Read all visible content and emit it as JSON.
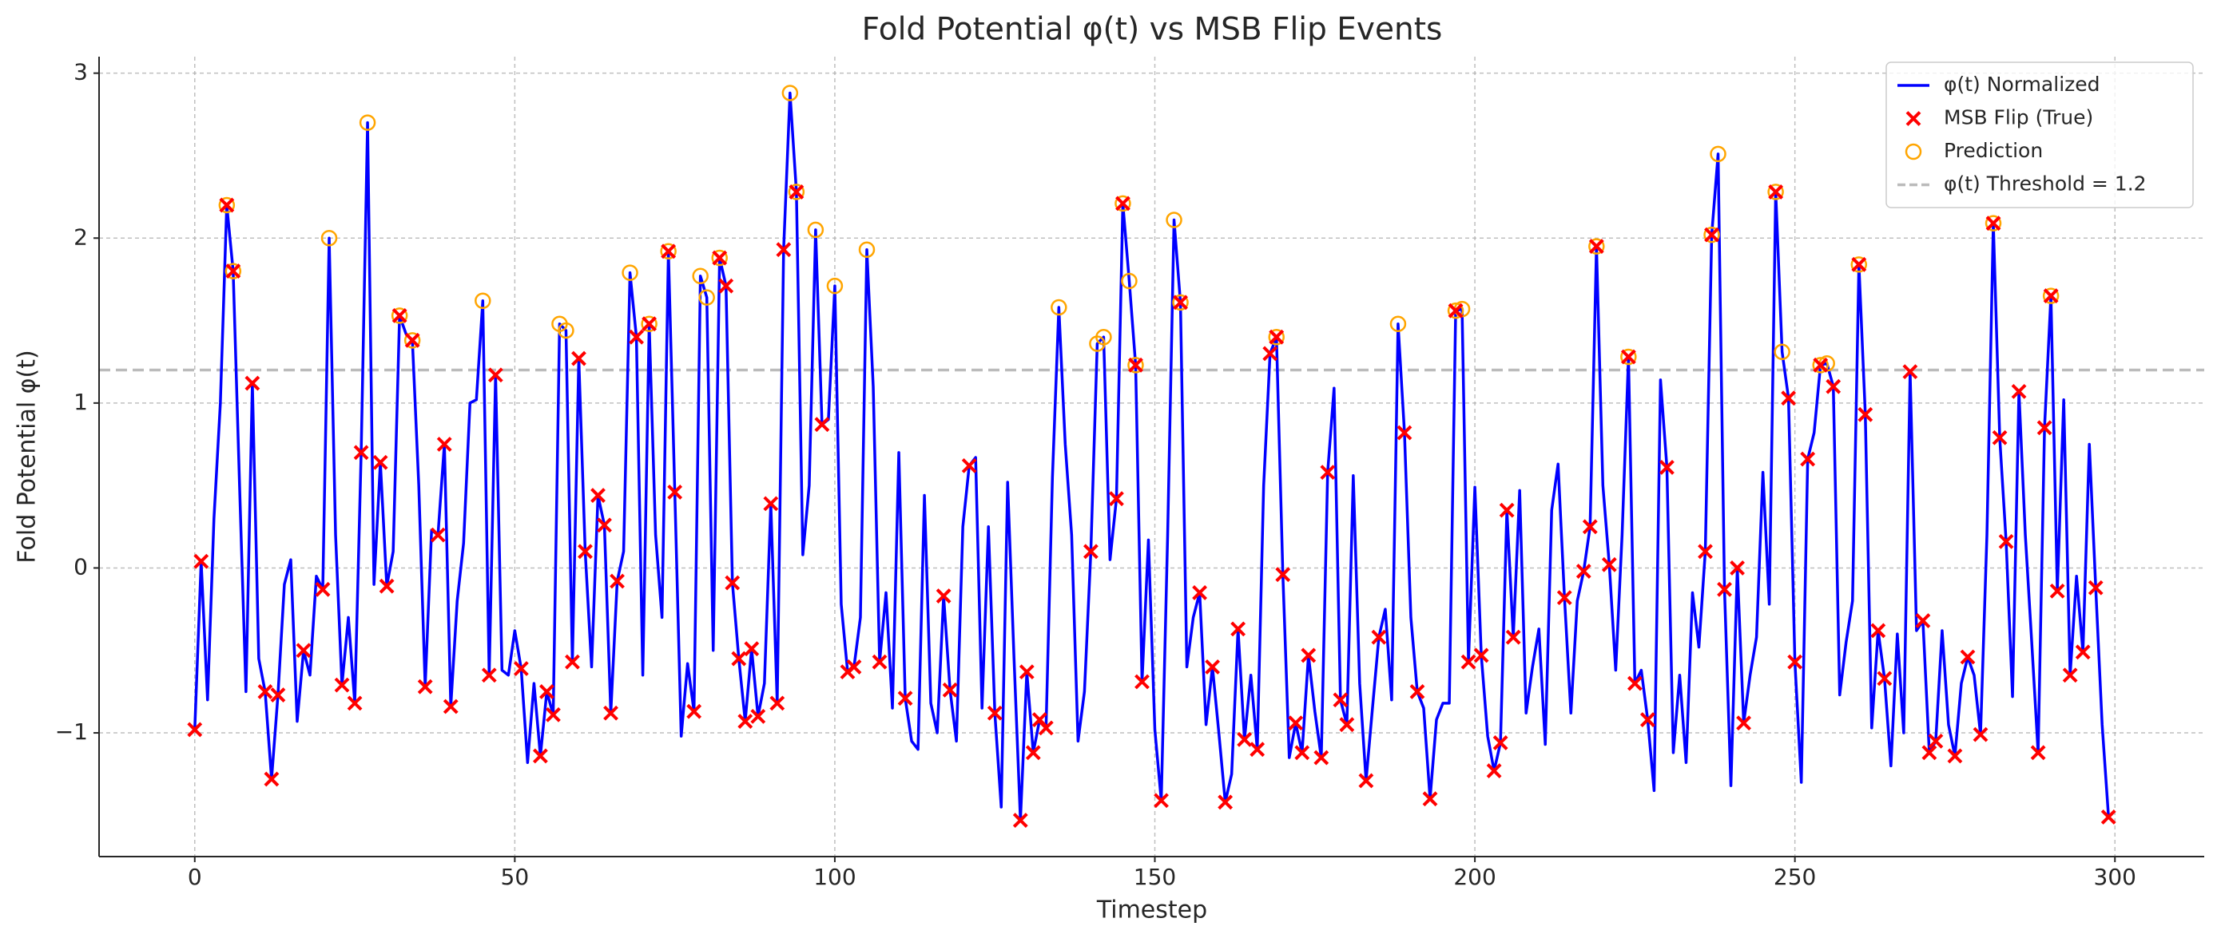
{
  "chart_data": {
    "type": "line",
    "title": "Fold Potential φ(t) vs MSB Flip Events",
    "xlabel": "Timestep",
    "ylabel": "Fold Potential φ(t)",
    "x": [
      0,
      1,
      2,
      3,
      4,
      5,
      6,
      7,
      8,
      9,
      10,
      11,
      12,
      13,
      14,
      15,
      16,
      17,
      18,
      19,
      20,
      21,
      22,
      23,
      24,
      25,
      26,
      27,
      28,
      29,
      30,
      31,
      32,
      33,
      34,
      35,
      36,
      37,
      38,
      39,
      40,
      41,
      42,
      43,
      44,
      45,
      46,
      47,
      48,
      49,
      50,
      51,
      52,
      53,
      54,
      55,
      56,
      57,
      58,
      59,
      60,
      61,
      62,
      63,
      64,
      65,
      66,
      67,
      68,
      69,
      70,
      71,
      72,
      73,
      74,
      75,
      76,
      77,
      78,
      79,
      80,
      81,
      82,
      83,
      84,
      85,
      86,
      87,
      88,
      89,
      90,
      91,
      92,
      93,
      94,
      95,
      96,
      97,
      98,
      99,
      100,
      101,
      102,
      103,
      104,
      105,
      106,
      107,
      108,
      109,
      110,
      111,
      112,
      113,
      114,
      115,
      116,
      117,
      118,
      119,
      120,
      121,
      122,
      123,
      124,
      125,
      126,
      127,
      128,
      129,
      130,
      131,
      132,
      133,
      134,
      135,
      136,
      137,
      138,
      139,
      140,
      141,
      142,
      143,
      144,
      145,
      146,
      147,
      148,
      149,
      150,
      151,
      152,
      153,
      154,
      155,
      156,
      157,
      158,
      159,
      160,
      161,
      162,
      163,
      164,
      165,
      166,
      167,
      168,
      169,
      170,
      171,
      172,
      173,
      174,
      175,
      176,
      177,
      178,
      179,
      180,
      181,
      182,
      183,
      184,
      185,
      186,
      187,
      188,
      189,
      190,
      191,
      192,
      193,
      194,
      195,
      196,
      197,
      198,
      199,
      200,
      201,
      202,
      203,
      204,
      205,
      206,
      207,
      208,
      209,
      210,
      211,
      212,
      213,
      214,
      215,
      216,
      217,
      218,
      219,
      220,
      221,
      222,
      223,
      224,
      225,
      226,
      227,
      228,
      229,
      230,
      231,
      232,
      233,
      234,
      235,
      236,
      237,
      238,
      239,
      240,
      241,
      242,
      243,
      244,
      245,
      246,
      247,
      248,
      249,
      250,
      251,
      252,
      253,
      254,
      255,
      256,
      257,
      258,
      259,
      260,
      261,
      262,
      263,
      264,
      265,
      266,
      267,
      268,
      269,
      270,
      271,
      272,
      273,
      274,
      275,
      276,
      277,
      278,
      279,
      280,
      281,
      282,
      283,
      284,
      285,
      286,
      287,
      288,
      289,
      290,
      291,
      292,
      293,
      294,
      295,
      296,
      297,
      298,
      299
    ],
    "series": [
      {
        "name": "φ(t) Normalized",
        "type": "line",
        "color": "#0000ff",
        "values": [
          -0.98,
          0.04,
          -0.8,
          0.3,
          1.0,
          2.2,
          1.8,
          0.5,
          -0.75,
          1.12,
          -0.55,
          -0.75,
          -1.28,
          -0.77,
          -0.1,
          0.05,
          -0.93,
          -0.5,
          -0.65,
          -0.05,
          -0.13,
          2.0,
          0.2,
          -0.71,
          -0.3,
          -0.82,
          0.7,
          2.7,
          -0.1,
          0.64,
          -0.11,
          0.1,
          1.53,
          1.42,
          1.38,
          0.5,
          -0.72,
          0.23,
          0.2,
          0.75,
          -0.84,
          -0.2,
          0.15,
          1.0,
          1.02,
          1.62,
          -0.65,
          1.17,
          -0.62,
          -0.65,
          -0.38,
          -0.61,
          -1.18,
          -0.7,
          -1.14,
          -0.75,
          -0.89,
          1.48,
          1.44,
          -0.57,
          1.27,
          0.1,
          -0.6,
          0.44,
          0.26,
          -0.88,
          -0.08,
          0.1,
          1.79,
          1.4,
          -0.65,
          1.48,
          0.2,
          -0.3,
          1.92,
          0.46,
          -1.02,
          -0.58,
          -0.87,
          1.77,
          1.64,
          -0.5,
          1.88,
          1.71,
          -0.09,
          -0.55,
          -0.93,
          -0.49,
          -0.9,
          -0.7,
          0.39,
          -0.82,
          1.93,
          2.88,
          2.28,
          0.08,
          0.5,
          2.05,
          0.87,
          0.9,
          1.71,
          -0.22,
          -0.63,
          -0.6,
          -0.3,
          1.93,
          1.1,
          -0.57,
          -0.15,
          -0.85,
          0.7,
          -0.79,
          -1.05,
          -1.1,
          0.44,
          -0.82,
          -1.0,
          -0.17,
          -0.74,
          -1.05,
          0.25,
          0.62,
          0.67,
          -0.85,
          0.25,
          -0.88,
          -1.45,
          0.52,
          -0.55,
          -1.53,
          -0.63,
          -1.12,
          -0.92,
          -0.97,
          0.55,
          1.58,
          0.75,
          0.2,
          -1.05,
          -0.75,
          0.1,
          1.36,
          1.4,
          0.05,
          0.42,
          2.21,
          1.74,
          1.23,
          -0.69,
          0.17,
          -0.98,
          -1.41,
          0.2,
          2.11,
          1.61,
          -0.6,
          -0.3,
          -0.15,
          -0.95,
          -0.6,
          -1.0,
          -1.42,
          -1.25,
          -0.37,
          -1.04,
          -0.65,
          -1.1,
          0.5,
          1.3,
          1.4,
          -0.04,
          -1.15,
          -0.94,
          -1.12,
          -0.53,
          -0.87,
          -1.15,
          0.58,
          1.09,
          -0.8,
          -0.95,
          0.56,
          -0.7,
          -1.29,
          -0.85,
          -0.42,
          -0.25,
          -0.8,
          1.48,
          0.82,
          -0.3,
          -0.75,
          -0.85,
          -1.4,
          -0.92,
          -0.82,
          -0.82,
          1.56,
          1.57,
          -0.57,
          0.49,
          -0.53,
          -1.02,
          -1.23,
          -1.06,
          0.35,
          -0.42,
          0.47,
          -0.88,
          -0.6,
          -0.37,
          -1.07,
          0.35,
          0.63,
          -0.18,
          -0.88,
          -0.2,
          -0.02,
          0.25,
          1.95,
          0.5,
          0.02,
          -0.62,
          0.2,
          1.28,
          -0.7,
          -0.62,
          -0.92,
          -1.35,
          1.14,
          0.61,
          -1.12,
          -0.65,
          -1.18,
          -0.15,
          -0.48,
          0.1,
          2.02,
          2.51,
          -0.13,
          -1.32,
          0.0,
          -0.94,
          -0.65,
          -0.42,
          0.58,
          -0.22,
          2.28,
          1.31,
          1.03,
          -0.57,
          -1.3,
          0.66,
          0.82,
          1.23,
          1.24,
          1.1,
          -0.77,
          -0.45,
          -0.2,
          1.84,
          0.93,
          -0.97,
          -0.38,
          -0.67,
          -1.2,
          -0.4,
          -1.0,
          1.19,
          -0.38,
          -0.32,
          -1.12,
          -1.05,
          -0.38,
          -0.95,
          -1.14,
          -0.7,
          -0.54,
          -0.65,
          -1.01,
          0.2,
          2.09,
          0.79,
          0.16,
          -0.78,
          1.07,
          0.2,
          -0.45,
          -1.12,
          0.85,
          1.65,
          -0.14,
          1.02,
          -0.65,
          -0.05,
          -0.51,
          0.75,
          -0.12,
          -0.95,
          -1.51
        ]
      },
      {
        "name": "MSB Flip (True)",
        "type": "scatter",
        "marker": "x",
        "color": "#ff0000",
        "x": [
          0,
          1,
          5,
          6,
          9,
          11,
          12,
          13,
          17,
          20,
          23,
          25,
          26,
          29,
          30,
          32,
          34,
          36,
          38,
          39,
          40,
          46,
          47,
          51,
          54,
          55,
          56,
          59,
          60,
          61,
          63,
          64,
          65,
          66,
          69,
          71,
          74,
          75,
          78,
          82,
          83,
          84,
          85,
          86,
          87,
          88,
          90,
          91,
          92,
          94,
          98,
          102,
          103,
          107,
          111,
          117,
          118,
          121,
          125,
          129,
          130,
          131,
          132,
          133,
          140,
          144,
          145,
          147,
          148,
          151,
          154,
          157,
          159,
          161,
          163,
          164,
          166,
          168,
          169,
          170,
          172,
          173,
          174,
          176,
          177,
          179,
          180,
          183,
          185,
          189,
          191,
          193,
          197,
          199,
          201,
          203,
          204,
          205,
          206,
          214,
          217,
          218,
          219,
          221,
          224,
          225,
          227,
          230,
          236,
          237,
          239,
          241,
          242,
          247,
          249,
          250,
          252,
          254,
          256,
          260,
          261,
          263,
          264,
          268,
          270,
          271,
          272,
          275,
          277,
          279,
          281,
          282,
          283,
          285,
          288,
          289,
          290,
          291,
          293,
          295,
          297,
          299
        ],
        "values": [
          -0.98,
          0.04,
          2.2,
          1.8,
          1.12,
          -0.75,
          -1.28,
          -0.77,
          -0.5,
          -0.13,
          -0.71,
          -0.82,
          0.7,
          0.64,
          -0.11,
          1.53,
          1.38,
          -0.72,
          0.2,
          0.75,
          -0.84,
          -0.65,
          1.17,
          -0.61,
          -1.14,
          -0.75,
          -0.89,
          -0.57,
          1.27,
          0.1,
          0.44,
          0.26,
          -0.88,
          -0.08,
          1.4,
          1.48,
          1.92,
          0.46,
          -0.87,
          1.88,
          1.71,
          -0.09,
          -0.55,
          -0.93,
          -0.49,
          -0.9,
          0.39,
          -0.82,
          1.93,
          2.28,
          0.87,
          -0.63,
          -0.6,
          -0.57,
          -0.79,
          -0.17,
          -0.74,
          0.62,
          -0.88,
          -1.53,
          -0.63,
          -1.12,
          -0.92,
          -0.97,
          0.1,
          0.42,
          2.21,
          1.23,
          -0.69,
          -1.41,
          1.61,
          -0.15,
          -0.6,
          -1.42,
          -0.37,
          -1.04,
          -1.1,
          1.3,
          1.4,
          -0.04,
          -0.94,
          -1.12,
          -0.53,
          -1.15,
          0.58,
          -0.8,
          -0.95,
          -1.29,
          -0.42,
          0.82,
          -0.75,
          -1.4,
          1.56,
          -0.57,
          -0.53,
          -1.23,
          -1.06,
          0.35,
          -0.42,
          -0.18,
          -0.02,
          0.25,
          1.95,
          0.02,
          1.28,
          -0.7,
          -0.92,
          0.61,
          0.1,
          2.02,
          -0.13,
          0.0,
          -0.94,
          2.28,
          1.03,
          -0.57,
          0.66,
          1.23,
          1.1,
          1.84,
          0.93,
          -0.38,
          -0.67,
          1.19,
          -0.32,
          -1.12,
          -1.05,
          -1.14,
          -0.54,
          -1.01,
          2.09,
          0.79,
          0.16,
          1.07,
          -1.12,
          0.85,
          1.65,
          -0.14,
          -0.65,
          -0.51,
          -0.12,
          -1.51
        ]
      },
      {
        "name": "Prediction",
        "type": "scatter",
        "marker": "circle",
        "color": "#ffa500",
        "x": [
          5,
          6,
          21,
          27,
          32,
          34,
          45,
          57,
          58,
          68,
          71,
          74,
          79,
          80,
          82,
          93,
          94,
          97,
          100,
          105,
          135,
          141,
          142,
          145,
          146,
          147,
          153,
          154,
          169,
          188,
          197,
          198,
          219,
          224,
          237,
          238,
          247,
          248,
          254,
          255,
          260,
          281,
          290
        ],
        "values": [
          2.2,
          1.8,
          2.0,
          2.7,
          1.53,
          1.38,
          1.62,
          1.48,
          1.44,
          1.79,
          1.48,
          1.92,
          1.77,
          1.64,
          1.88,
          2.88,
          2.28,
          2.05,
          1.71,
          1.93,
          1.58,
          1.36,
          1.4,
          2.21,
          1.74,
          1.23,
          2.11,
          1.61,
          1.4,
          1.48,
          1.56,
          1.57,
          1.95,
          1.28,
          2.02,
          2.51,
          2.28,
          1.31,
          1.23,
          1.24,
          1.84,
          2.09,
          1.65
        ]
      }
    ],
    "threshold": {
      "name": "φ(t) Threshold = 1.2",
      "value": 1.2,
      "color": "#bbbbbb"
    },
    "xlim": [
      -14.95,
      313.95
    ],
    "ylim": [
      -1.75,
      3.1
    ],
    "xticks": [
      0,
      50,
      100,
      150,
      200,
      250,
      300
    ],
    "yticks": [
      {
        "value": -1,
        "label": "−1"
      },
      0,
      1,
      2,
      3
    ],
    "grid": true,
    "legend": "upper right"
  }
}
